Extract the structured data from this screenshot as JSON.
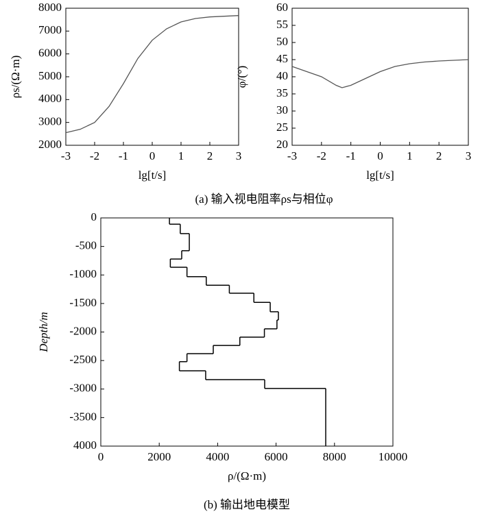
{
  "chart_data": [
    {
      "type": "line",
      "xlabel": "lg[t/s]",
      "ylabel": "ρs/(Ω·m)",
      "x": [
        -3,
        -2.5,
        -2,
        -1.5,
        -1,
        -0.5,
        0,
        0.5,
        1,
        1.5,
        2,
        2.5,
        3
      ],
      "values": [
        2550,
        2700,
        3000,
        3700,
        4700,
        5800,
        6600,
        7100,
        7400,
        7550,
        7620,
        7650,
        7680
      ],
      "color": "#555555",
      "xlim": [
        -3,
        3
      ],
      "xticks": [
        -3,
        -2,
        -1,
        0,
        1,
        2,
        3
      ],
      "ylim": [
        2000,
        8000
      ],
      "yticks": [
        2000,
        3000,
        4000,
        5000,
        6000,
        7000,
        8000
      ]
    },
    {
      "type": "line",
      "xlabel": "lg[t/s]",
      "ylabel": "φ/(°)",
      "x": [
        -3,
        -2.5,
        -2,
        -1.5,
        -1.3,
        -1,
        -0.5,
        0,
        0.5,
        1,
        1.5,
        2,
        2.5,
        3
      ],
      "values": [
        43,
        41.5,
        40,
        37.5,
        36.8,
        37.5,
        39.5,
        41.5,
        43,
        43.8,
        44.3,
        44.6,
        44.8,
        45
      ],
      "color": "#555555",
      "xlim": [
        -3,
        3
      ],
      "xticks": [
        -3,
        -2,
        -1,
        0,
        1,
        2,
        3
      ],
      "ylim": [
        20,
        60
      ],
      "yticks": [
        20,
        25,
        30,
        35,
        40,
        45,
        50,
        55,
        60
      ]
    },
    {
      "type": "step",
      "xlabel": "ρ/(Ω·m)",
      "ylabel": "Depth/m",
      "values": [
        2350,
        2720,
        3030,
        2770,
        2380,
        2950,
        3610,
        4400,
        5240,
        5800,
        6080,
        6030,
        5600,
        4760,
        3850,
        2950,
        2690,
        3590,
        5610,
        7700
      ],
      "depth_bins": [
        0,
        -110,
        -275,
        -575,
        -720,
        -865,
        -1030,
        -1180,
        -1320,
        -1480,
        -1645,
        -1790,
        -1945,
        -2090,
        -2235,
        -2380,
        -2520,
        -2680,
        -2835,
        -2990,
        -4000
      ],
      "color": "#000000",
      "xlim": [
        0,
        10000
      ],
      "xticks": [
        0,
        2000,
        4000,
        6000,
        8000,
        10000
      ],
      "ylim": [
        -4000,
        0
      ],
      "yticks": [
        0,
        -500,
        -1000,
        -1500,
        -2000,
        -2500,
        -3000,
        -3500,
        {
          "value": -4000,
          "label": "4000"
        }
      ]
    }
  ],
  "captions": [
    "(a) 输入视电阻率ρs与相位φ",
    "(b) 输出地电模型"
  ]
}
